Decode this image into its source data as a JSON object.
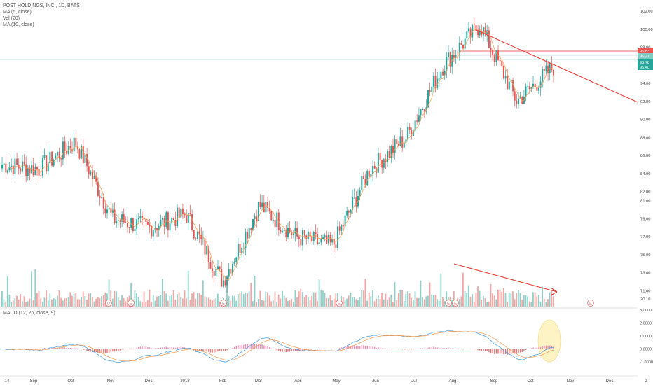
{
  "legend": {
    "title": "POST HOLDINGS, INC., 1D, BATS",
    "ma5": "MA (5, close)",
    "vol": "Vol (20)",
    "ma10": "MA (10, close)"
  },
  "macd_label": "MACD (12, 26, close, 9)",
  "colors": {
    "up": "#26a69a",
    "down": "#ef5350",
    "up_vol": "#8fd0c8",
    "down_vol": "#f5a5a3",
    "ma": "#f7a15b",
    "macd_line": "#4fa3e0",
    "signal_line": "#f7a15b",
    "trendline": "#e53935",
    "hline": "#80cbc4",
    "highlight": "#fdf3c4"
  },
  "chart_data": {
    "type": "candlestick",
    "title": "POST HOLDINGS, INC., 1D, BATS",
    "price_axis_ticks": [
      "102.00",
      "100.00",
      "98.00",
      "96.00",
      "94.00",
      "92.00",
      "90.00",
      "88.00",
      "86.00",
      "84.00",
      "82.00",
      "81.00",
      "79.00",
      "77.00",
      "75.00",
      "73.00",
      "71.00",
      "70.10"
    ],
    "price_tags": [
      {
        "label": "96.83",
        "color": "#ef5350"
      },
      {
        "label": "96.21",
        "color": "#80cbc4"
      },
      {
        "label": "95.78",
        "color": "#26a69a"
      },
      {
        "label": "95.40",
        "color": "#26a69a"
      }
    ],
    "macd_axis_ticks": [
      "3.0000",
      "2.0000",
      "1.0000",
      "0.0000",
      "-1.0000"
    ],
    "time_axis_ticks": [
      "14",
      "Sep",
      "Oct",
      "Nov",
      "Dec",
      "2018",
      "Feb",
      "Mar",
      "Apr",
      "May",
      "Jun",
      "Jul",
      "Aug",
      "Sep",
      "Oct",
      "Nov",
      "Dec",
      "2"
    ],
    "earnings_markers": [
      "D",
      "E",
      "E",
      "E",
      "E",
      "E",
      "E"
    ],
    "closes_approx": [
      {
        "month": "Aug 14",
        "close": 85.0
      },
      {
        "month": "Sep",
        "close": 84.5
      },
      {
        "month": "Oct",
        "close": 87.5
      },
      {
        "month": "Nov",
        "close": 79.0
      },
      {
        "month": "Dec",
        "close": 78.0
      },
      {
        "month": "2018",
        "close": 79.5
      },
      {
        "month": "Feb",
        "close": 72.0
      },
      {
        "month": "Mar",
        "close": 80.5
      },
      {
        "month": "Apr",
        "close": 77.0
      },
      {
        "month": "May",
        "close": 76.0
      },
      {
        "month": "Jun",
        "close": 84.5
      },
      {
        "month": "Jul",
        "close": 88.0
      },
      {
        "month": "Aug",
        "close": 96.0
      },
      {
        "month": "Sep",
        "close": 100.5
      },
      {
        "month": "Oct",
        "close": 92.0
      },
      {
        "month": "Oct end",
        "close": 95.8
      }
    ]
  }
}
